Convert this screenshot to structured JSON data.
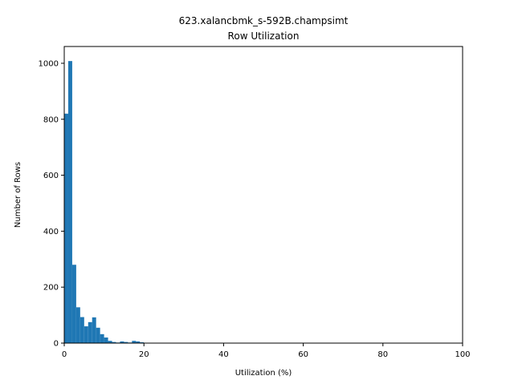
{
  "chart_data": {
    "type": "bar",
    "title_lines": [
      "623.xalancbmk_s-592B.champsimt",
      "Row Utilization"
    ],
    "xlabel": "Utilization (%)",
    "ylabel": "Number of Rows",
    "xlim": [
      0,
      100
    ],
    "ylim": [
      0,
      1060
    ],
    "xticks": [
      0,
      20,
      40,
      60,
      80,
      100
    ],
    "yticks": [
      0,
      200,
      400,
      600,
      800,
      1000
    ],
    "bin_width": 1,
    "bins": [
      {
        "x": 0,
        "value": 820
      },
      {
        "x": 1,
        "value": 1008
      },
      {
        "x": 2,
        "value": 280
      },
      {
        "x": 3,
        "value": 128
      },
      {
        "x": 4,
        "value": 93
      },
      {
        "x": 5,
        "value": 60
      },
      {
        "x": 6,
        "value": 75
      },
      {
        "x": 7,
        "value": 92
      },
      {
        "x": 8,
        "value": 55
      },
      {
        "x": 9,
        "value": 32
      },
      {
        "x": 10,
        "value": 20
      },
      {
        "x": 11,
        "value": 8
      },
      {
        "x": 12,
        "value": 4
      },
      {
        "x": 13,
        "value": 2
      },
      {
        "x": 14,
        "value": 6
      },
      {
        "x": 15,
        "value": 4
      },
      {
        "x": 16,
        "value": 2
      },
      {
        "x": 17,
        "value": 8
      },
      {
        "x": 18,
        "value": 6
      },
      {
        "x": 19,
        "value": 3
      },
      {
        "x": 20,
        "value": 1
      }
    ],
    "grid": false,
    "bar_color": "#1f77b4"
  }
}
